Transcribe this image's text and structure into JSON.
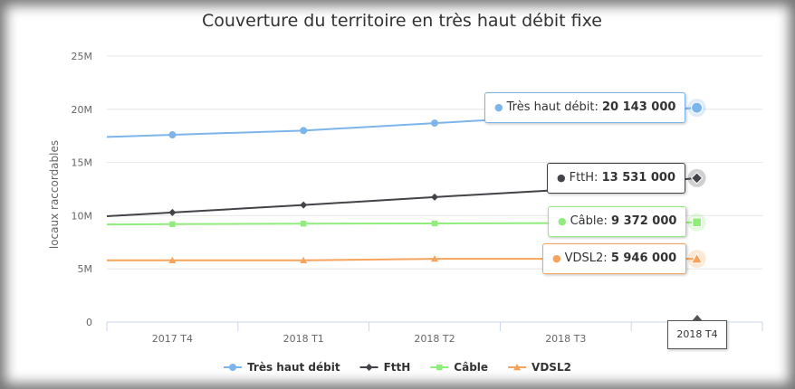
{
  "chart_data": {
    "type": "line",
    "title": "Couverture du territoire en très haut débit fixe",
    "ylabel": "locaux raccordables",
    "xlabel": "",
    "categories": [
      "2017 T4",
      "2018 T1",
      "2018 T2",
      "2018 T3",
      "2018 T4"
    ],
    "y_ticks": [
      "0",
      "5M",
      "10M",
      "15M",
      "20M",
      "25M"
    ],
    "ylim": [
      0,
      25000000
    ],
    "grid": true,
    "legend_position": "bottom",
    "series": [
      {
        "name": "Très haut débit",
        "color": "#7cb5ec",
        "marker": "circle",
        "values": [
          17600000,
          18000000,
          18700000,
          19400000,
          20143000
        ]
      },
      {
        "name": "FttH",
        "color": "#434348",
        "marker": "diamond",
        "values": [
          10300000,
          11000000,
          11750000,
          12450000,
          13531000
        ]
      },
      {
        "name": "Câble",
        "color": "#90ed7d",
        "marker": "square",
        "values": [
          9200000,
          9250000,
          9270000,
          9300000,
          9372000
        ]
      },
      {
        "name": "VDSL2",
        "color": "#f7a35c",
        "marker": "triangle",
        "values": [
          5800000,
          5800000,
          5946000,
          5946000,
          5946000
        ]
      }
    ],
    "hover": {
      "category": "2018 T4",
      "tooltips": [
        {
          "series": "Très haut débit",
          "label": "Très haut débit:",
          "value": "20 143 000"
        },
        {
          "series": "FttH",
          "label": "FttH:",
          "value": "13 531 000"
        },
        {
          "series": "Câble",
          "label": "Câble:",
          "value": "9 372 000"
        },
        {
          "series": "VDSL2",
          "label": "VDSL2:",
          "value": "5 946 000"
        }
      ]
    }
  }
}
